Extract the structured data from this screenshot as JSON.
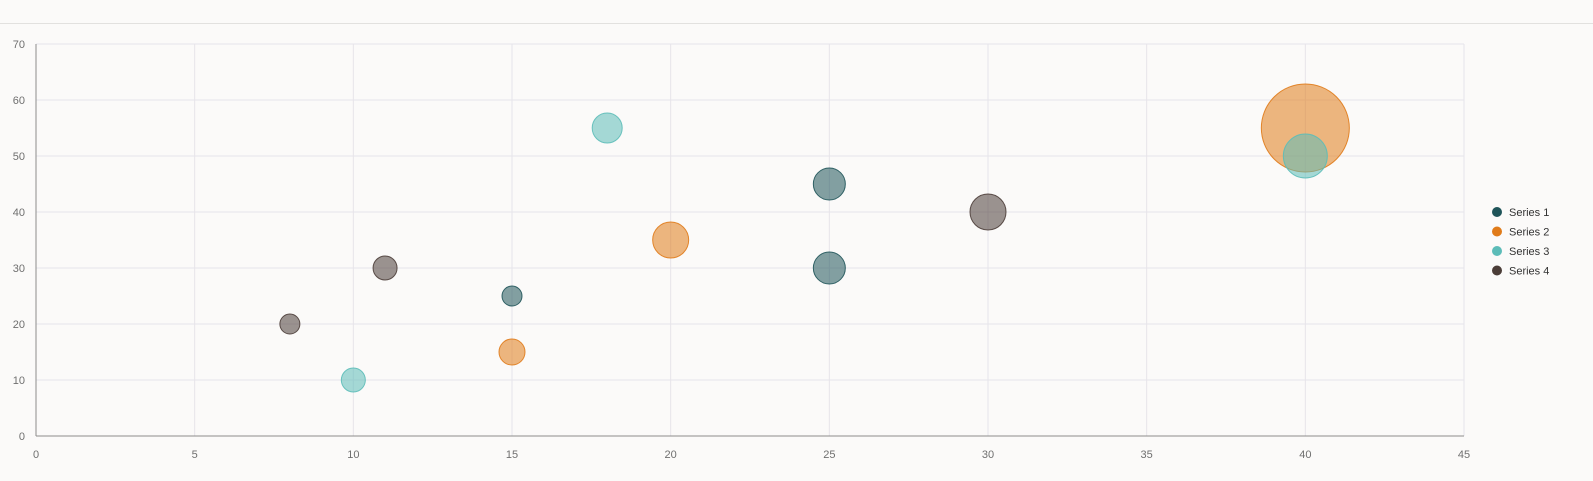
{
  "chart_data": {
    "type": "bubble",
    "title": "",
    "xlabel": "",
    "ylabel": "",
    "xlim": [
      0,
      45
    ],
    "ylim": [
      0,
      70
    ],
    "x_ticks": [
      "0",
      "5",
      "10",
      "15",
      "20",
      "25",
      "30",
      "35",
      "40",
      "45"
    ],
    "y_ticks": [
      "0",
      "10",
      "20",
      "30",
      "40",
      "50",
      "60",
      "70"
    ],
    "grid": true,
    "legend_position": "right",
    "series": [
      {
        "name": "Series 1",
        "color": "#1f5459",
        "points": [
          {
            "x": 15,
            "y": 25,
            "size": 10
          },
          {
            "x": 25,
            "y": 30,
            "size": 16
          },
          {
            "x": 25,
            "y": 45,
            "size": 16
          }
        ]
      },
      {
        "name": "Series 2",
        "color": "#e07b1a",
        "points": [
          {
            "x": 15,
            "y": 15,
            "size": 13
          },
          {
            "x": 20,
            "y": 35,
            "size": 18
          },
          {
            "x": 40,
            "y": 55,
            "size": 44
          }
        ]
      },
      {
        "name": "Series 3",
        "color": "#5cbcb8",
        "points": [
          {
            "x": 10,
            "y": 10,
            "size": 12
          },
          {
            "x": 18,
            "y": 55,
            "size": 15
          },
          {
            "x": 40,
            "y": 50,
            "size": 22
          }
        ]
      },
      {
        "name": "Series 4",
        "color": "#4b3d38",
        "points": [
          {
            "x": 8,
            "y": 20,
            "size": 10
          },
          {
            "x": 11,
            "y": 30,
            "size": 12
          },
          {
            "x": 30,
            "y": 40,
            "size": 18
          }
        ]
      }
    ]
  }
}
